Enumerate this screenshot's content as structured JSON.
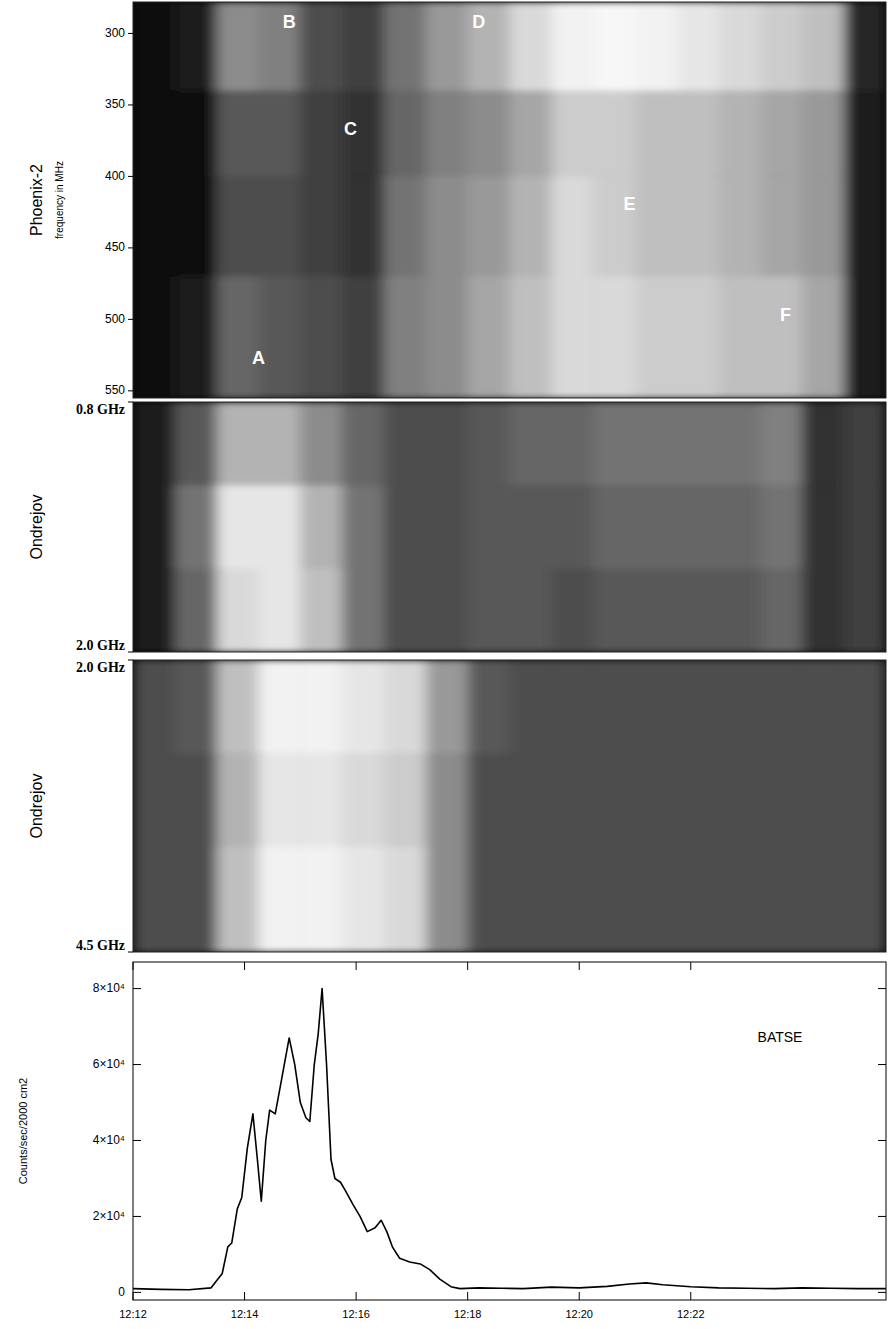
{
  "chart_data": [
    {
      "type": "heatmap",
      "y_label": "Phoenix-2",
      "y_sublabel": "frequency in MHz",
      "xlim": [
        12,
        25.5
      ],
      "ylim": [
        278,
        555
      ],
      "yticks": [
        300,
        350,
        400,
        450,
        500,
        550
      ],
      "tick_labels": "y",
      "time_bins": [
        12,
        12.75,
        13.5,
        14.25,
        15,
        15.75,
        16.5,
        17.25,
        18,
        18.75,
        19.5,
        20.25,
        21,
        21.75,
        22.5,
        23.25,
        24,
        24.75,
        25.5
      ],
      "freq_bins": [
        278,
        340,
        400,
        470,
        555
      ],
      "color_range": [
        0,
        1
      ],
      "intensity": [
        [
          0.05,
          0.1,
          0.55,
          0.5,
          0.3,
          0.25,
          0.45,
          0.6,
          0.7,
          0.85,
          0.95,
          0.97,
          0.95,
          0.9,
          0.85,
          0.8,
          0.75,
          0.15
        ],
        [
          0.05,
          0.05,
          0.35,
          0.35,
          0.25,
          0.2,
          0.4,
          0.5,
          0.55,
          0.65,
          0.8,
          0.8,
          0.75,
          0.75,
          0.7,
          0.65,
          0.6,
          0.1
        ],
        [
          0.05,
          0.05,
          0.3,
          0.3,
          0.25,
          0.2,
          0.45,
          0.55,
          0.6,
          0.7,
          0.85,
          0.8,
          0.75,
          0.75,
          0.7,
          0.65,
          0.6,
          0.1
        ],
        [
          0.05,
          0.1,
          0.4,
          0.35,
          0.3,
          0.25,
          0.5,
          0.55,
          0.65,
          0.75,
          0.85,
          0.85,
          0.8,
          0.8,
          0.75,
          0.75,
          0.65,
          0.1
        ]
      ],
      "annotations": [
        {
          "text": "A",
          "x": 14.25,
          "y": 528
        },
        {
          "text": "B",
          "x": 14.8,
          "y": 293
        },
        {
          "text": "C",
          "x": 15.9,
          "y": 368
        },
        {
          "text": "D",
          "x": 18.2,
          "y": 293
        },
        {
          "text": "E",
          "x": 20.9,
          "y": 420
        },
        {
          "text": "F",
          "x": 23.7,
          "y": 498
        }
      ]
    },
    {
      "type": "heatmap",
      "y_label": "Ondrejov",
      "xlim": [
        12,
        25.5
      ],
      "ylim": [
        0.8,
        2.0
      ],
      "yticks": [
        {
          "value": 0.8,
          "label": "0.8 GHz"
        },
        {
          "value": 2.0,
          "label": "2.0 GHz"
        }
      ],
      "tick_labels": "y",
      "time_bins": [
        12,
        12.75,
        13.5,
        14.25,
        15,
        15.75,
        16.5,
        17.25,
        18,
        18.75,
        19.5,
        20.25,
        21,
        21.75,
        22.5,
        23.25,
        24,
        24.75,
        25.5
      ],
      "freq_bins": [
        0.8,
        1.2,
        1.6,
        2.0
      ],
      "color_range": [
        0,
        1
      ],
      "intensity": [
        [
          0.1,
          0.35,
          0.7,
          0.7,
          0.55,
          0.4,
          0.3,
          0.3,
          0.35,
          0.4,
          0.4,
          0.45,
          0.45,
          0.45,
          0.45,
          0.5,
          0.2,
          0.25
        ],
        [
          0.1,
          0.45,
          0.9,
          0.9,
          0.7,
          0.45,
          0.3,
          0.3,
          0.35,
          0.35,
          0.35,
          0.4,
          0.4,
          0.4,
          0.4,
          0.45,
          0.2,
          0.25
        ],
        [
          0.1,
          0.4,
          0.85,
          0.9,
          0.75,
          0.45,
          0.3,
          0.3,
          0.35,
          0.35,
          0.3,
          0.35,
          0.35,
          0.35,
          0.35,
          0.4,
          0.2,
          0.25
        ]
      ]
    },
    {
      "type": "heatmap",
      "y_label": "Ondrejov",
      "xlim": [
        12,
        25.5
      ],
      "ylim": [
        2.0,
        4.5
      ],
      "yticks": [
        {
          "value": 2.0,
          "label": "2.0 GHz"
        },
        {
          "value": 4.5,
          "label": "4.5 GHz"
        }
      ],
      "tick_labels": "y",
      "time_bins": [
        12,
        12.75,
        13.5,
        14.25,
        15,
        15.75,
        16.5,
        17.25,
        18,
        18.75,
        19.5,
        20.25,
        21,
        21.75,
        22.5,
        23.25,
        24,
        24.75,
        25.5
      ],
      "freq_bins": [
        2.0,
        2.8,
        3.6,
        4.5
      ],
      "color_range": [
        0,
        1
      ],
      "intensity": [
        [
          0.3,
          0.35,
          0.75,
          0.95,
          0.95,
          0.9,
          0.85,
          0.6,
          0.35,
          0.3,
          0.3,
          0.3,
          0.3,
          0.3,
          0.3,
          0.3,
          0.3,
          0.3
        ],
        [
          0.3,
          0.3,
          0.7,
          0.9,
          0.9,
          0.85,
          0.8,
          0.55,
          0.3,
          0.3,
          0.3,
          0.3,
          0.3,
          0.3,
          0.3,
          0.3,
          0.3,
          0.3
        ],
        [
          0.3,
          0.3,
          0.75,
          0.95,
          0.95,
          0.9,
          0.85,
          0.55,
          0.3,
          0.3,
          0.3,
          0.3,
          0.3,
          0.3,
          0.3,
          0.3,
          0.3,
          0.3
        ]
      ]
    },
    {
      "type": "line",
      "y_label": "Counts/sec/2000 cm2",
      "color": "#000000",
      "xlim": [
        12,
        25.5
      ],
      "ylim": [
        -2000,
        87000
      ],
      "xticks": [
        {
          "value": 12,
          "label": "12:12"
        },
        {
          "value": 14,
          "label": "12:14"
        },
        {
          "value": 16,
          "label": "12:16"
        },
        {
          "value": 18,
          "label": "12:18"
        },
        {
          "value": 20,
          "label": "12:20"
        },
        {
          "value": 22,
          "label": "12:22"
        }
      ],
      "yticks": [
        0,
        {
          "value": 20000,
          "label": "2×10⁴"
        },
        {
          "value": 40000,
          "label": "4×10⁴"
        },
        {
          "value": 60000,
          "label": "6×10⁴"
        },
        {
          "value": 80000,
          "label": "8×10⁴"
        }
      ],
      "x": [
        12.0,
        12.5,
        13.0,
        13.4,
        13.6,
        13.7,
        13.77,
        13.87,
        13.95,
        14.05,
        14.15,
        14.23,
        14.3,
        14.38,
        14.45,
        14.55,
        14.65,
        14.8,
        14.9,
        15.0,
        15.1,
        15.17,
        15.25,
        15.32,
        15.39,
        15.47,
        15.55,
        15.62,
        15.72,
        15.8,
        15.95,
        16.07,
        16.2,
        16.34,
        16.45,
        16.55,
        16.65,
        16.78,
        16.96,
        17.15,
        17.32,
        17.5,
        17.7,
        17.86,
        18.2,
        18.6,
        19.0,
        19.5,
        20.0,
        20.5,
        20.9,
        21.2,
        21.5,
        22.0,
        22.5,
        23.0,
        23.5,
        24.0,
        24.5,
        25.0,
        25.5
      ],
      "values": [
        1000,
        800,
        700,
        1200,
        5000,
        12000,
        13000,
        22000,
        25000,
        38000,
        47000,
        35000,
        24000,
        40000,
        48000,
        47000,
        55000,
        67000,
        60000,
        50000,
        46000,
        45000,
        60000,
        68000,
        80000,
        60000,
        35000,
        30000,
        29000,
        27000,
        23000,
        20000,
        16000,
        17000,
        19000,
        16000,
        12000,
        9000,
        8000,
        7500,
        6000,
        3500,
        1500,
        1000,
        1200,
        1100,
        1000,
        1400,
        1200,
        1600,
        2200,
        2500,
        2000,
        1500,
        1200,
        1100,
        1000,
        1200,
        1100,
        1000,
        1000
      ],
      "annotations": [
        {
          "text": "BATSE",
          "x": 23.6,
          "y": 67000
        }
      ]
    }
  ]
}
